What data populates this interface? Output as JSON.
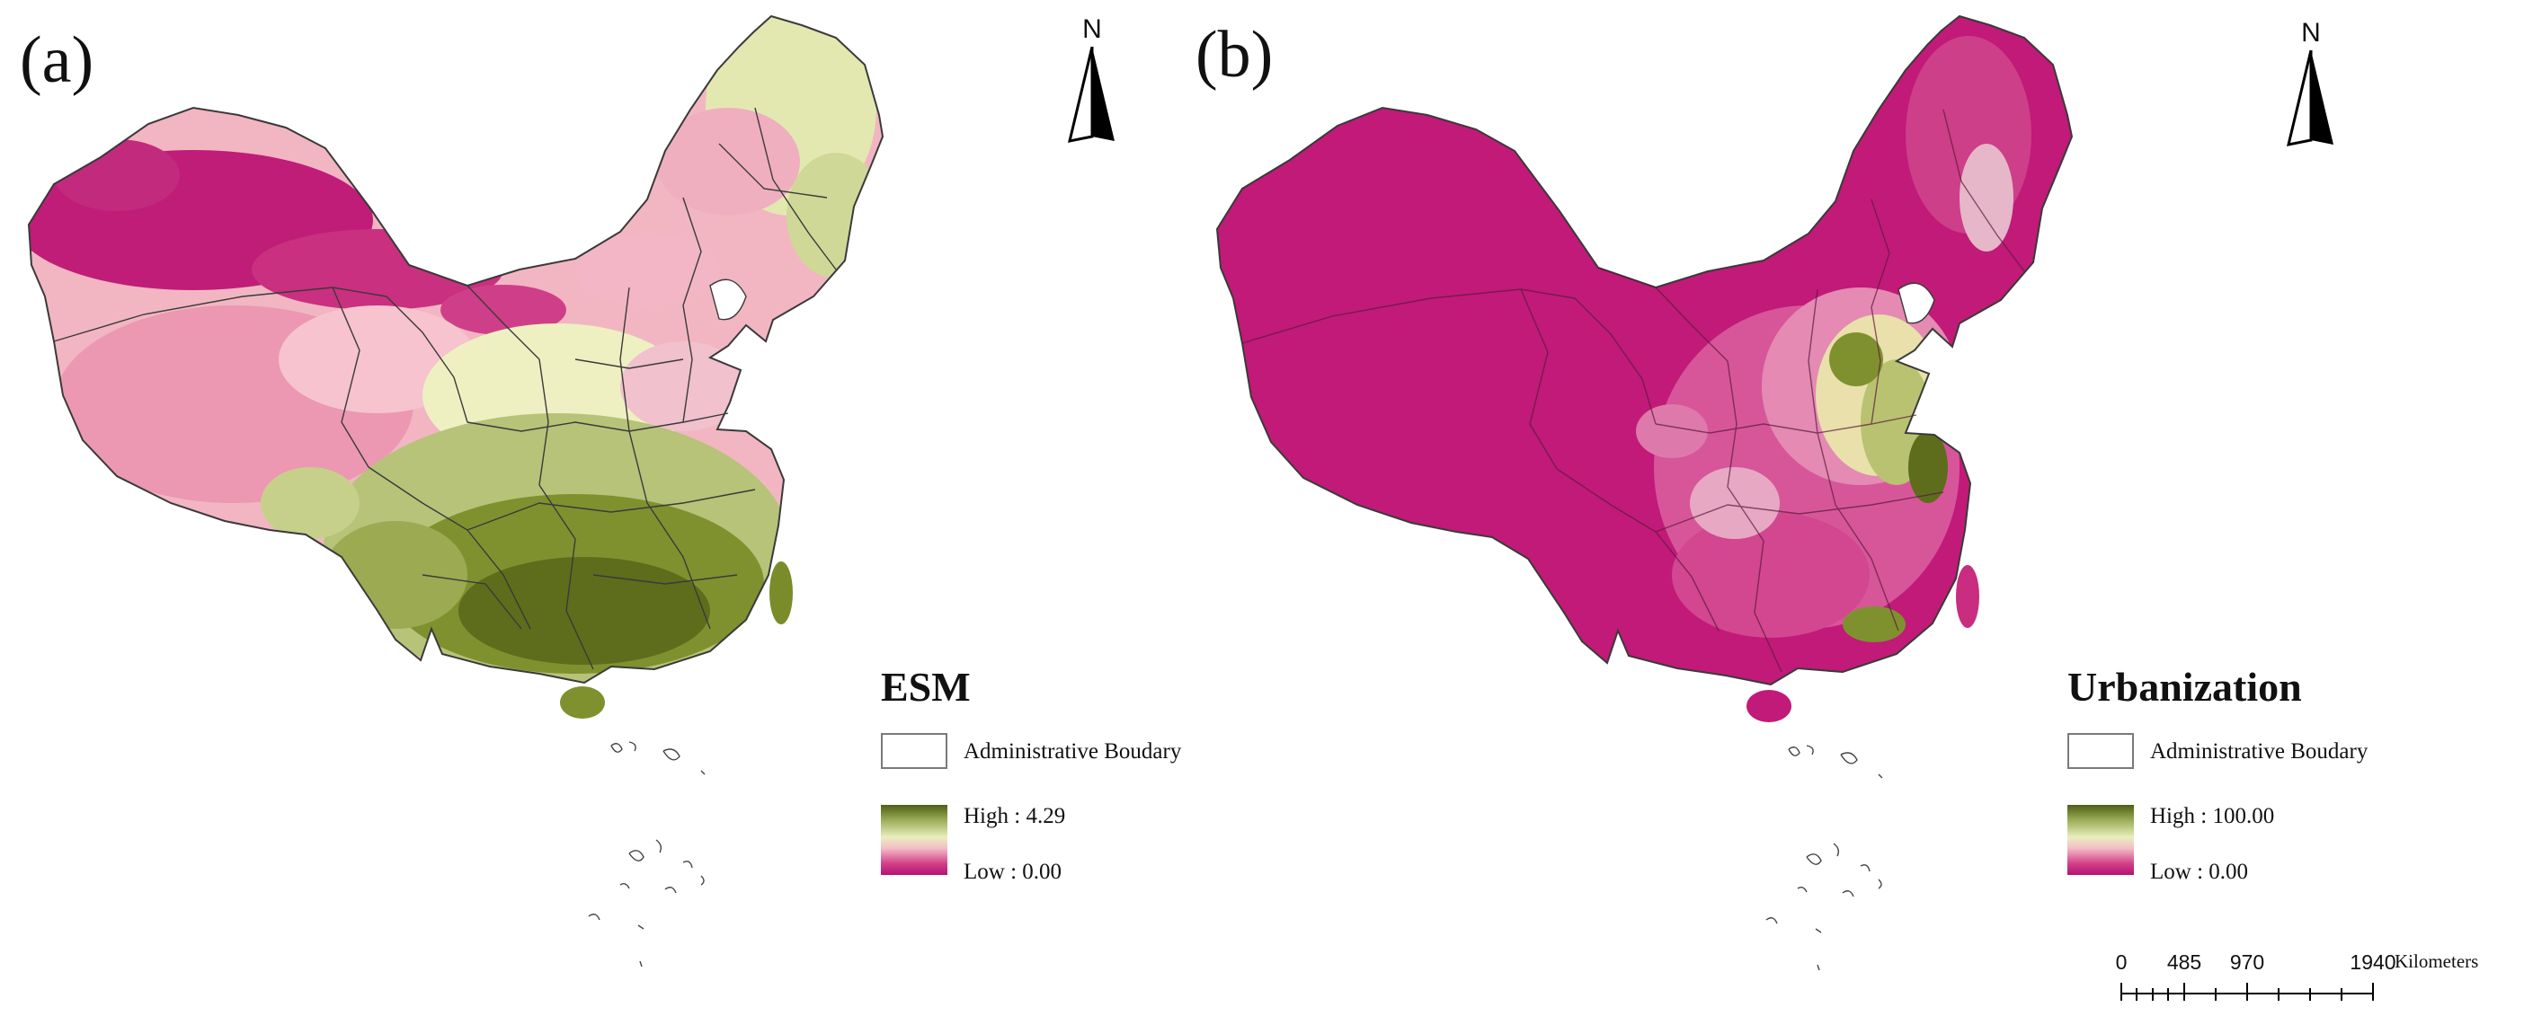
{
  "panels": [
    {
      "label": "(a)",
      "legend": {
        "title": "ESM",
        "boundary_label": "Administrative Boudary",
        "high_label": "High : 4.29",
        "low_label": "Low : 0.00"
      },
      "north_label": "N"
    },
    {
      "label": "(b)",
      "legend": {
        "title": "Urbanization",
        "boundary_label": "Administrative Boudary",
        "high_label": "High : 100.00",
        "low_label": "Low : 0.00"
      },
      "north_label": "N"
    }
  ],
  "scale_bar": {
    "ticks": [
      "0",
      "485",
      "970",
      "1940"
    ],
    "unit": "Kilometers"
  },
  "colors": {
    "ramp_high": "#4e5e16",
    "ramp_mid": "#e9efbe",
    "ramp_low": "#b51273",
    "boundary": "#3a3a3a"
  }
}
